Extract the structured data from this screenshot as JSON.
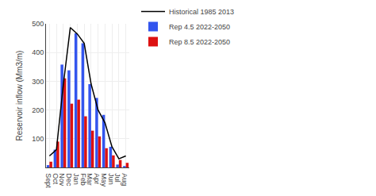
{
  "chart_data": {
    "type": "bar",
    "ylabel": "Reservoir inflow (Mm3/m)",
    "categories": [
      "Sept",
      "Oct",
      "Nov",
      "Dec",
      "Jan",
      "Feb",
      "Mar",
      "Apr",
      "May",
      "Jun",
      "Jul",
      "Aug"
    ],
    "series": [
      {
        "name": "Historical 1985 2013",
        "type": "line",
        "color": "#000000",
        "values": [
          40,
          62,
          290,
          487,
          465,
          432,
          290,
          200,
          155,
          72,
          30,
          40
        ]
      },
      {
        "name": "Rep 4.5 2022-2050",
        "type": "bar",
        "color": "#3355EE",
        "values": [
          8,
          62,
          358,
          338,
          467,
          432,
          290,
          242,
          183,
          72,
          10,
          5
        ]
      },
      {
        "name": "Rep 8.5 2022-2050",
        "type": "bar",
        "color": "#DD1111",
        "values": [
          20,
          90,
          310,
          222,
          236,
          178,
          128,
          108,
          67,
          42,
          26,
          16
        ]
      }
    ],
    "ylim": [
      0,
      500
    ],
    "yticks": [
      100,
      200,
      300,
      400,
      500
    ],
    "grid": true,
    "legend": "top"
  }
}
